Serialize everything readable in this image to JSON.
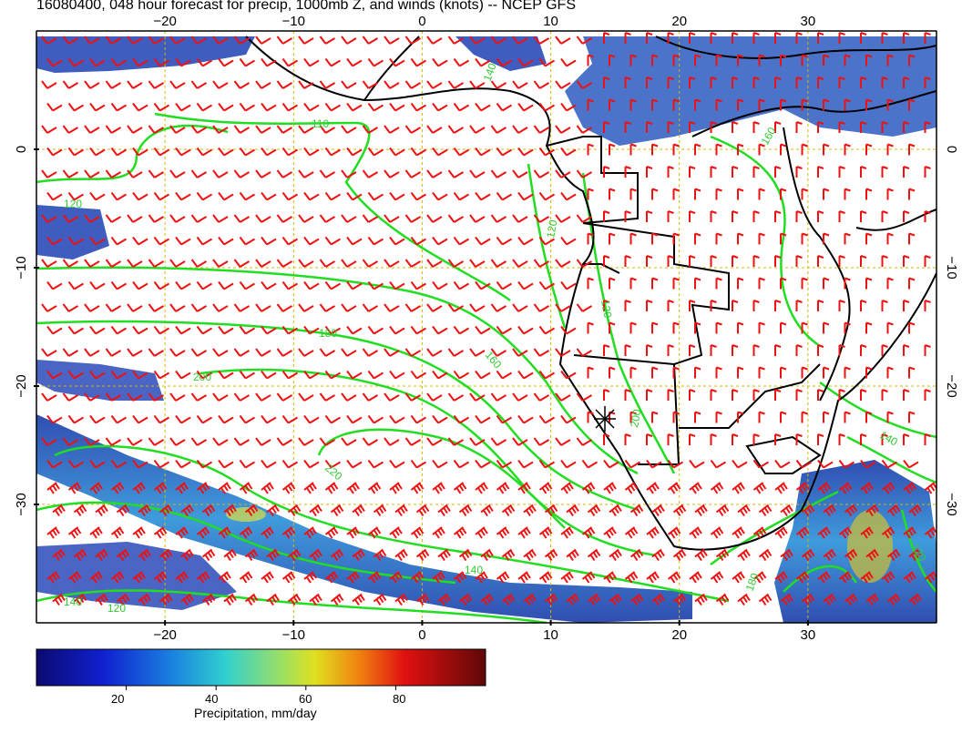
{
  "title": "16080400, 048 hour forecast for precip, 1000mb Z, and winds (knots) -- NCEP GFS",
  "colors": {
    "wind_barb": "#ee1111",
    "contour": "#22dd22",
    "coast": "#000000",
    "grid": "#d4b800",
    "precip_low": "#1a2a9a",
    "precip_mid": "#2ab8d8",
    "precip_high": "#e8e020"
  },
  "map": {
    "projection": "lat-lon",
    "lon_range": [
      -30,
      40
    ],
    "lat_range": [
      -40,
      10
    ],
    "grid": true,
    "x_ticks": [
      "-20",
      "-10",
      "0",
      "10",
      "20",
      "30"
    ],
    "y_ticks": [
      "0",
      "-10",
      "-20",
      "-30"
    ]
  },
  "contour_labels": [
    "120",
    "110",
    "140",
    "180",
    "200",
    "220",
    "160",
    "120",
    "140",
    "120",
    "140",
    "120",
    "160",
    "180",
    "140",
    "200",
    "120"
  ],
  "colorbar": {
    "caption": "Precipitation, mm/day",
    "ticks": [
      "20",
      "40",
      "60",
      "80"
    ],
    "range": [
      0,
      100
    ]
  },
  "icons": {
    "station_marker": "asterisk-icon"
  }
}
